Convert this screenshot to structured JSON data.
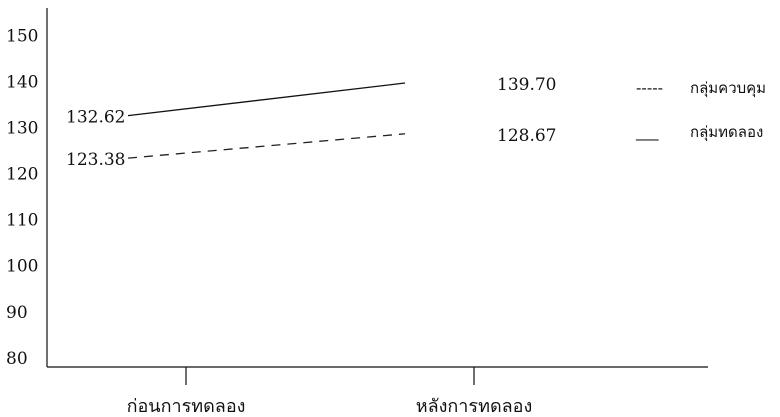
{
  "chart_data": {
    "type": "line",
    "categories": [
      "ก่อนการทดลอง",
      "หลังการทดลอง"
    ],
    "series": [
      {
        "name": "กลุ่มควบคุม",
        "values": [
          123.38,
          128.67
        ],
        "style": "dashed",
        "color": "#222222"
      },
      {
        "name": "กลุ่มทดลอง",
        "values": [
          132.62,
          139.7
        ],
        "style": "solid",
        "color": "#111111"
      }
    ],
    "data_labels": [
      {
        "text": "132.62",
        "category": 0,
        "value": 132.62
      },
      {
        "text": "123.38",
        "category": 0,
        "value": 123.38
      },
      {
        "text": "139.70",
        "category": 1,
        "value": 139.7
      },
      {
        "text": "128.67",
        "category": 1,
        "value": 128.67
      }
    ],
    "yticks": [
      "80",
      "90",
      "100",
      "110",
      "120",
      "130",
      "140",
      "150"
    ],
    "ylim": [
      78,
      156
    ],
    "legend": [
      {
        "marker": "-----",
        "text": "กลุ่มควบคุม"
      },
      {
        "marker": "___",
        "text": "กลุ่มทดลอง"
      }
    ],
    "legend_position": "right",
    "grid": false,
    "title": "",
    "xlabel": "",
    "ylabel": ""
  }
}
